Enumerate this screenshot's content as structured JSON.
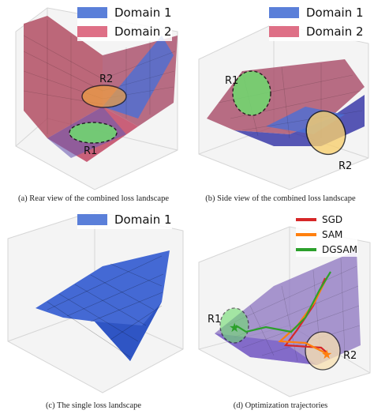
{
  "chart_data": [
    {
      "type": "surface",
      "caption": "(a) Rear view of the combined loss landscape",
      "legend": [
        {
          "name": "Domain 1",
          "color": "#4a6fd6"
        },
        {
          "name": "Domain 2",
          "color": "#d94a6a"
        }
      ],
      "regions": [
        "R1",
        "R2"
      ]
    },
    {
      "type": "surface",
      "caption": "(b) Side view of the combined loss landscape",
      "legend": [
        {
          "name": "Domain 1",
          "color": "#4a6fd6"
        },
        {
          "name": "Domain 2",
          "color": "#d94a6a"
        }
      ],
      "regions": [
        "R1",
        "R2"
      ]
    },
    {
      "type": "surface",
      "caption": "(c) The single loss landscape",
      "legend": [
        {
          "name": "Domain 1",
          "color": "#4a6fd6"
        }
      ]
    },
    {
      "type": "surface",
      "caption": "(d) Optimization trajectories",
      "legend": [
        {
          "name": "SGD",
          "color": "#d62728"
        },
        {
          "name": "SAM",
          "color": "#ff7f0e"
        },
        {
          "name": "DGSAM",
          "color": "#2ca02c"
        }
      ],
      "regions": [
        "R1",
        "R2"
      ]
    }
  ]
}
